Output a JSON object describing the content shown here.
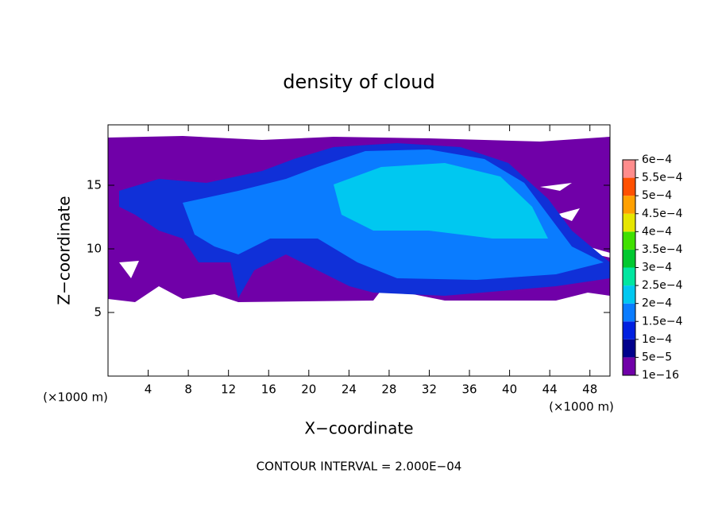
{
  "chart_data": {
    "type": "contour",
    "title": "density of cloud",
    "xlabel": "X−coordinate",
    "ylabel": "Z−coordinate",
    "xunit": "(×1000 m)",
    "yunit": "(×1000 m)",
    "annotation": "CONTOUR INTERVAL = 2.000E−04",
    "xlim": [
      0,
      50
    ],
    "ylim": [
      0,
      19.75
    ],
    "xticks": [
      4,
      8,
      12,
      16,
      20,
      24,
      28,
      32,
      36,
      40,
      44,
      48
    ],
    "yticks": [
      5,
      10,
      15
    ],
    "levels": [
      {
        "value": 1e-16,
        "label": "1e−16"
      },
      {
        "value": 5e-05,
        "label": "5e−5"
      },
      {
        "value": 0.0001,
        "label": "1e−4"
      },
      {
        "value": 0.00015,
        "label": "1.5e−4"
      },
      {
        "value": 0.0002,
        "label": "2e−4"
      },
      {
        "value": 0.00025,
        "label": "2.5e−4"
      },
      {
        "value": 0.0003,
        "label": "3e−4"
      },
      {
        "value": 0.00035,
        "label": "3.5e−4"
      },
      {
        "value": 0.0004,
        "label": "4e−4"
      },
      {
        "value": 0.00045,
        "label": "4.5e−4"
      },
      {
        "value": 0.0005,
        "label": "5e−4"
      },
      {
        "value": 0.00055,
        "label": "5.5e−4"
      },
      {
        "value": 0.0006,
        "label": "6e−4"
      }
    ],
    "colors": [
      "#7000a8",
      "#00008c",
      "#0020e0",
      "#0a7cff",
      "#00c8f0",
      "#00e6a0",
      "#00c830",
      "#40e000",
      "#e6e600",
      "#ffa000",
      "#ff5000",
      "#ff8c8c"
    ]
  }
}
